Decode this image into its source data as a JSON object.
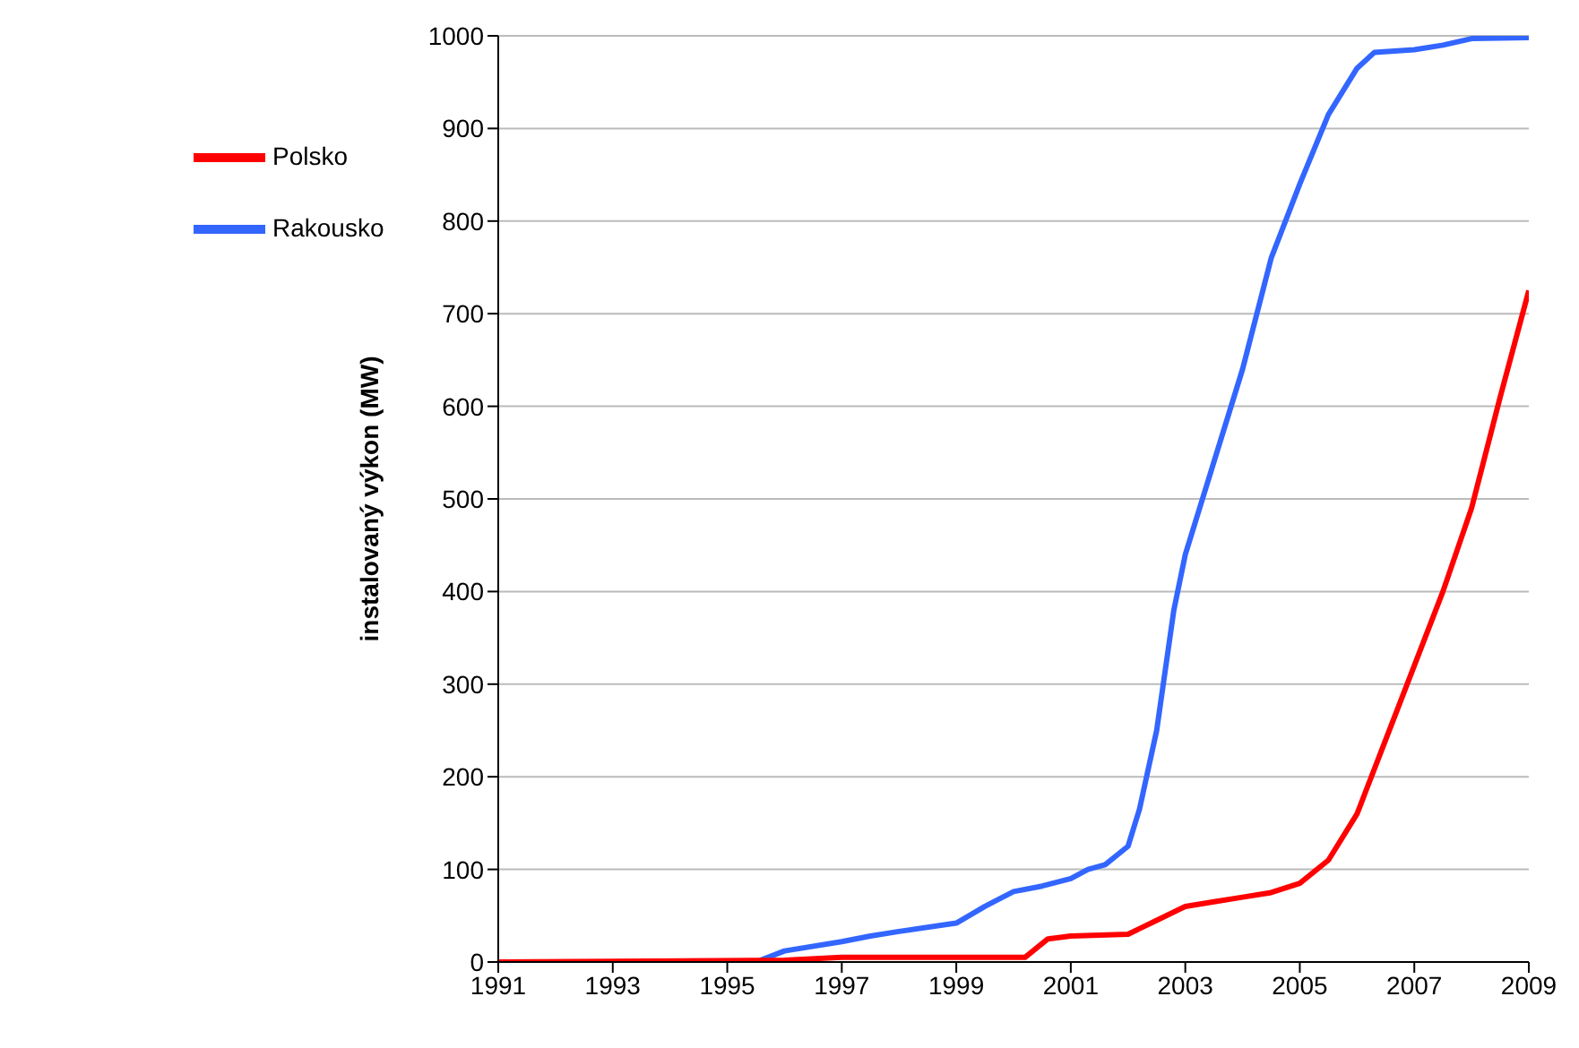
{
  "chart_data": {
    "type": "line",
    "ylabel": "instalovaný výkon (MW)",
    "xlim": [
      1991,
      2009
    ],
    "xticks": [
      1991,
      1993,
      1995,
      1997,
      1999,
      2001,
      2003,
      2005,
      2007,
      2009
    ],
    "ylim": [
      0,
      1000
    ],
    "yticks": [
      0,
      100,
      200,
      300,
      400,
      500,
      600,
      700,
      800,
      900,
      1000
    ],
    "grid": "y",
    "legend": "top left",
    "marker": "none",
    "line_style": "solid",
    "series": [
      {
        "name": "Rakousko",
        "color": "#3366ff",
        "x": [
          1991,
          1995.5,
          1996,
          1997,
          1997.5,
          1998,
          1999,
          1999.5,
          2000,
          2000.5,
          2001,
          2001.3,
          2001.6,
          2002,
          2002.2,
          2002.5,
          2002.8,
          2003,
          2003.5,
          2004,
          2004.5,
          2005,
          2005.5,
          2006,
          2006.3,
          2007,
          2007.5,
          2008,
          2009
        ],
        "values": [
          0,
          0,
          12,
          22,
          28,
          33,
          42,
          60,
          76,
          82,
          90,
          100,
          105,
          125,
          165,
          250,
          380,
          440,
          540,
          640,
          760,
          840,
          915,
          965,
          982,
          985,
          990,
          997,
          998
        ]
      },
      {
        "name": "Polsko",
        "color": "#ff0000",
        "x": [
          1991,
          1996,
          1997,
          2000.2,
          2000.6,
          2001,
          2002,
          2002.5,
          2003,
          2003.5,
          2004,
          2004.5,
          2005,
          2005.5,
          2006,
          2006.5,
          2007,
          2007.5,
          2008,
          2008.5,
          2009
        ],
        "values": [
          0,
          2,
          5,
          5,
          25,
          28,
          30,
          45,
          60,
          65,
          70,
          75,
          85,
          110,
          160,
          240,
          320,
          400,
          490,
          610,
          725
        ]
      }
    ]
  }
}
